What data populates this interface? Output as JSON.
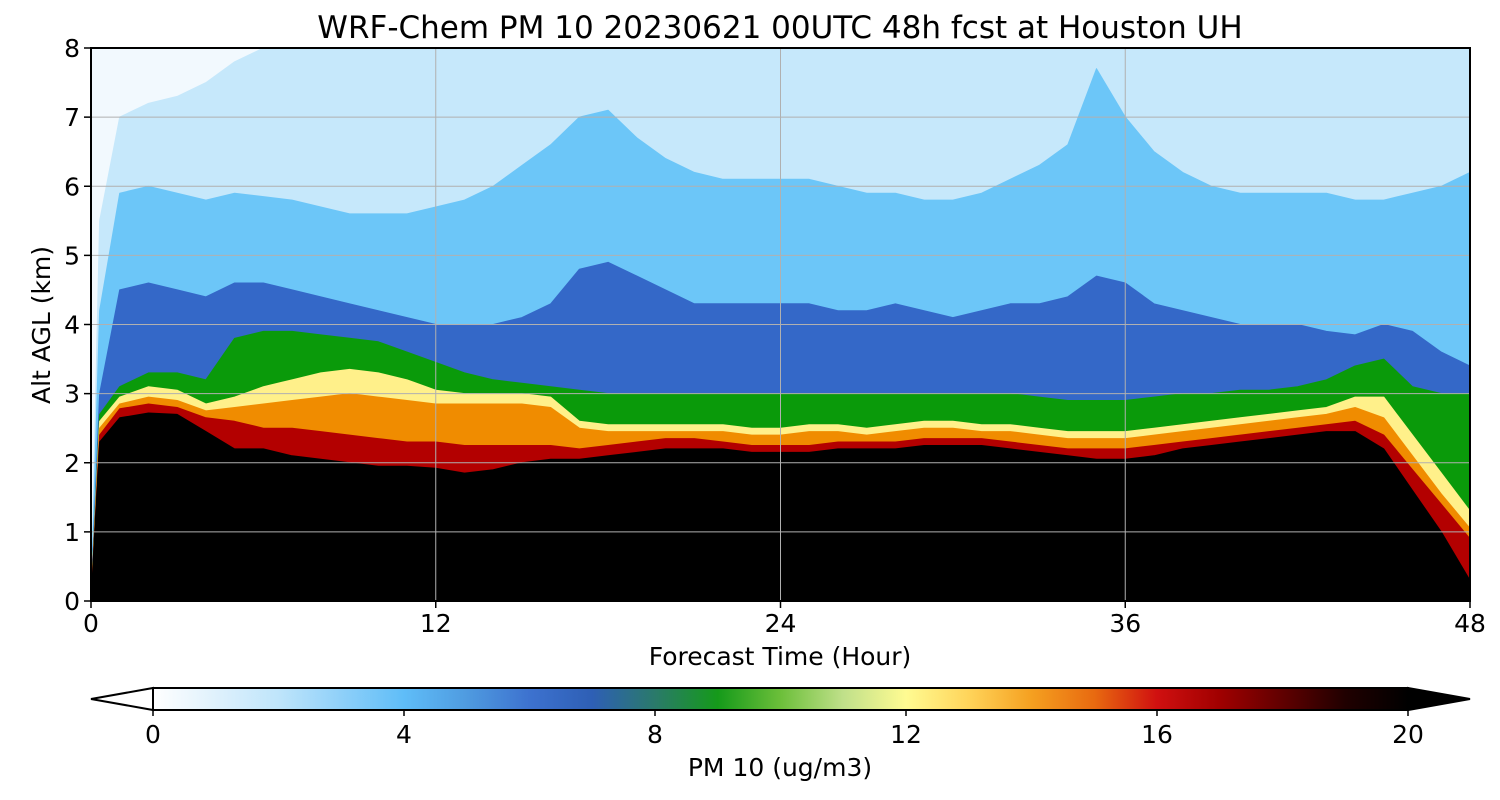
{
  "chart_data": {
    "type": "heatmap",
    "title": "WRF-Chem PM 10  20230621 00UTC 48h fcst at Houston UH",
    "xlabel": "Forecast Time (Hour)",
    "ylabel": "Alt AGL (km)",
    "xlim": [
      0,
      48
    ],
    "ylim": [
      0,
      8
    ],
    "x_ticks": [
      "0",
      "12",
      "24",
      "36",
      "48"
    ],
    "y_ticks": [
      "0",
      "1",
      "2",
      "3",
      "4",
      "5",
      "6",
      "7",
      "8"
    ],
    "grid": true,
    "colorbar": {
      "label": "PM 10  (ug/m3)",
      "ticks": [
        "0",
        "4",
        "8",
        "12",
        "16",
        "20"
      ],
      "range": [
        0,
        20
      ],
      "extend": "both",
      "placement": "bottom"
    },
    "hours": [
      0,
      0.3,
      1,
      2,
      3,
      4,
      5,
      6,
      7,
      8,
      9,
      10,
      11,
      12,
      13,
      14,
      15,
      16,
      17,
      18,
      19,
      20,
      21,
      22,
      23,
      24,
      25,
      26,
      27,
      28,
      29,
      30,
      31,
      32,
      33,
      34,
      35,
      36,
      37,
      38,
      39,
      40,
      41,
      42,
      43,
      44,
      45,
      46,
      47,
      48
    ],
    "black_top_km": [
      0.0,
      2.3,
      2.65,
      2.72,
      2.7,
      2.45,
      2.2,
      2.2,
      2.1,
      2.05,
      2.0,
      1.95,
      1.95,
      1.92,
      1.85,
      1.9,
      2.0,
      2.05,
      2.05,
      2.1,
      2.15,
      2.2,
      2.2,
      2.2,
      2.15,
      2.15,
      2.15,
      2.2,
      2.2,
      2.2,
      2.25,
      2.25,
      2.25,
      2.2,
      2.15,
      2.1,
      2.05,
      2.05,
      2.1,
      2.2,
      2.25,
      2.3,
      2.35,
      2.4,
      2.45,
      2.45,
      2.2,
      1.6,
      1.0,
      0.3
    ],
    "red_top_km": [
      0.0,
      2.4,
      2.78,
      2.85,
      2.8,
      2.65,
      2.6,
      2.5,
      2.5,
      2.45,
      2.4,
      2.35,
      2.3,
      2.3,
      2.25,
      2.25,
      2.25,
      2.25,
      2.2,
      2.25,
      2.3,
      2.35,
      2.35,
      2.3,
      2.25,
      2.25,
      2.25,
      2.3,
      2.3,
      2.3,
      2.35,
      2.35,
      2.35,
      2.3,
      2.25,
      2.2,
      2.2,
      2.2,
      2.25,
      2.3,
      2.35,
      2.4,
      2.45,
      2.5,
      2.55,
      2.6,
      2.4,
      1.9,
      1.4,
      0.9
    ],
    "orange_top_km": [
      0.0,
      2.5,
      2.85,
      2.95,
      2.9,
      2.75,
      2.8,
      2.85,
      2.9,
      2.95,
      3.0,
      2.95,
      2.9,
      2.85,
      2.85,
      2.85,
      2.85,
      2.8,
      2.5,
      2.45,
      2.45,
      2.45,
      2.45,
      2.45,
      2.4,
      2.4,
      2.45,
      2.45,
      2.4,
      2.45,
      2.5,
      2.5,
      2.45,
      2.45,
      2.4,
      2.35,
      2.35,
      2.35,
      2.4,
      2.45,
      2.5,
      2.55,
      2.6,
      2.65,
      2.7,
      2.8,
      2.65,
      2.1,
      1.55,
      1.05
    ],
    "yellow_top_km": [
      0.0,
      2.6,
      2.95,
      3.1,
      3.05,
      2.85,
      2.95,
      3.1,
      3.2,
      3.3,
      3.35,
      3.3,
      3.2,
      3.05,
      3.0,
      3.0,
      3.0,
      2.95,
      2.6,
      2.55,
      2.55,
      2.55,
      2.55,
      2.55,
      2.5,
      2.5,
      2.55,
      2.55,
      2.5,
      2.55,
      2.6,
      2.6,
      2.55,
      2.55,
      2.5,
      2.45,
      2.45,
      2.45,
      2.5,
      2.55,
      2.6,
      2.65,
      2.7,
      2.75,
      2.8,
      2.95,
      2.95,
      2.4,
      1.85,
      1.3
    ],
    "green_top_km": [
      0.0,
      2.7,
      3.1,
      3.3,
      3.3,
      3.2,
      3.8,
      3.9,
      3.9,
      3.85,
      3.8,
      3.75,
      3.6,
      3.45,
      3.3,
      3.2,
      3.15,
      3.1,
      3.05,
      3.0,
      3.0,
      3.0,
      3.0,
      3.0,
      3.0,
      3.0,
      3.0,
      3.0,
      3.0,
      3.0,
      3.0,
      3.0,
      3.0,
      3.0,
      2.95,
      2.9,
      2.9,
      2.9,
      2.95,
      3.0,
      3.0,
      3.05,
      3.05,
      3.1,
      3.2,
      3.4,
      3.5,
      3.1,
      3.0,
      3.0
    ],
    "blue_top_km": [
      0.0,
      3.0,
      4.5,
      4.6,
      4.5,
      4.4,
      4.6,
      4.6,
      4.5,
      4.4,
      4.3,
      4.2,
      4.1,
      4.0,
      4.0,
      4.0,
      4.1,
      4.3,
      4.8,
      4.9,
      4.7,
      4.5,
      4.3,
      4.3,
      4.3,
      4.3,
      4.3,
      4.2,
      4.2,
      4.3,
      4.2,
      4.1,
      4.2,
      4.3,
      4.3,
      4.4,
      4.7,
      4.6,
      4.3,
      4.2,
      4.1,
      4.0,
      4.0,
      4.0,
      3.9,
      3.85,
      4.0,
      3.9,
      3.6,
      3.4
    ],
    "skyblue_top_km": [
      0.0,
      4.2,
      5.9,
      6.0,
      5.9,
      5.8,
      5.9,
      5.85,
      5.8,
      5.7,
      5.6,
      5.6,
      5.6,
      5.7,
      5.8,
      6.0,
      6.3,
      6.6,
      7.0,
      7.1,
      6.7,
      6.4,
      6.2,
      6.1,
      6.1,
      6.1,
      6.1,
      6.0,
      5.9,
      5.9,
      5.8,
      5.8,
      5.9,
      6.1,
      6.3,
      6.6,
      7.7,
      7.0,
      6.5,
      6.2,
      6.0,
      5.9,
      5.9,
      5.9,
      5.9,
      5.8,
      5.8,
      5.9,
      6.0,
      6.2
    ],
    "pale_top_km": [
      0.0,
      5.5,
      7.0,
      7.2,
      7.3,
      7.5,
      7.8,
      8.0,
      8.0,
      8.0,
      8.0,
      8.0,
      8.0,
      8.0,
      8.0,
      8.0,
      8.0,
      8.0,
      8.0,
      8.0,
      8.0,
      8.0,
      8.0,
      8.0,
      8.0,
      8.0,
      8.0,
      8.0,
      8.0,
      8.0,
      8.0,
      8.0,
      8.0,
      8.0,
      8.0,
      8.0,
      8.0,
      8.0,
      8.0,
      8.0,
      8.0,
      8.0,
      8.0,
      8.0,
      8.0,
      8.0,
      8.0,
      8.0,
      8.0,
      8.0
    ],
    "band_colors": [
      "#000000",
      "#b30000",
      "#f08c00",
      "#fff08a",
      "#0a9a0a",
      "#3468c8",
      "#6cc6f8",
      "#c6e8fb"
    ],
    "background_color": "#f2f9fe",
    "colormap_stops": [
      "#ffffff",
      "#dff1fc",
      "#bfe5fb",
      "#8fd0f9",
      "#5fbdf8",
      "#4f9be0",
      "#3d72cf",
      "#2e5fb5",
      "#2a7a6a",
      "#159a1a",
      "#6cbf3a",
      "#c0e08a",
      "#fffb92",
      "#ffd45a",
      "#f5a020",
      "#e86a10",
      "#d01010",
      "#a00000",
      "#600000",
      "#200000",
      "#000000"
    ]
  }
}
